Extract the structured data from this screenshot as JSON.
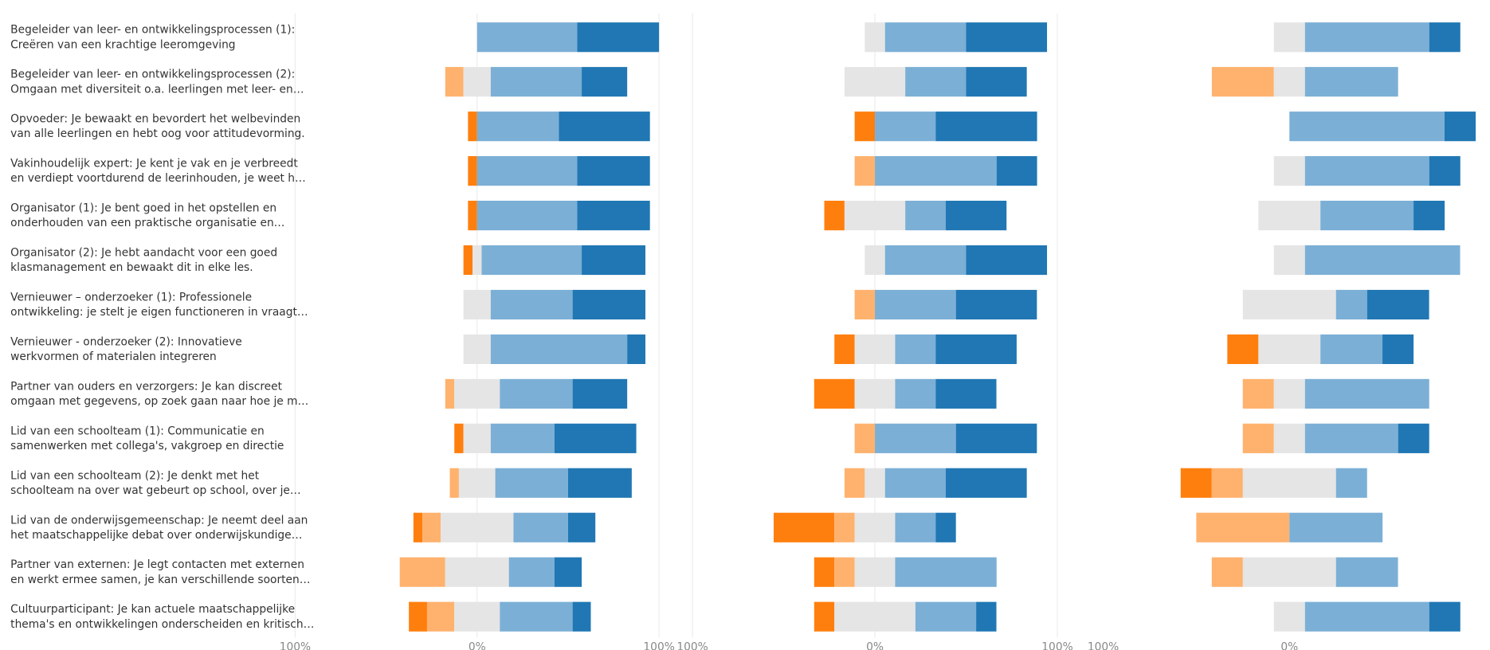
{
  "chart_data": [
    {
      "type": "bar",
      "orientation": "horizontal",
      "stacked": "diverging",
      "categories": [
        [
          "Begeleider van leer- en ontwikkelingsprocessen (1):",
          "Creëren van een krachtige leeromgeving"
        ],
        [
          "Begeleider van leer- en ontwikkelingsprocessen (2):",
          "Omgaan met diversiteit o.a. leerlingen met leer- en…"
        ],
        [
          "Opvoeder: Je bewaakt en bevordert het welbevinden",
          "van alle leerlingen en hebt oog voor attitudevorming."
        ],
        [
          "Vakinhoudelijk expert: Je kent je vak en je verbreedt",
          "en verdiept voortdurend de leerinhouden, je weet h…"
        ],
        [
          "Organisator (1): Je bent goed in het opstellen en",
          "onderhouden van een praktische organisatie en…"
        ],
        [
          "Organisator (2): Je hebt aandacht voor een goed",
          "klasmanagement en bewaakt dit in elke les."
        ],
        [
          "Vernieuwer – onderzoeker (1): Professionele",
          "ontwikkeling: je stelt je eigen functioneren in vraagt…"
        ],
        [
          "Vernieuwer - onderzoeker (2): Innovatieve",
          "werkvormen of materialen integreren"
        ],
        [
          "Partner van ouders en verzorgers: Je kan discreet",
          "omgaan met gegevens, op zoek gaan naar hoe je m…"
        ],
        [
          "Lid van een schoolteam (1): Communicatie en",
          "samenwerken met collega's, vakgroep en directie"
        ],
        [
          "Lid van een schoolteam (2): Je denkt met het",
          "schoolteam na over wat gebeurt op school, over je…"
        ],
        [
          "Lid van de onderwijsgemeenschap: Je neemt deel aan",
          "het maatschappelijke debat over onderwijskundige…"
        ],
        [
          "Partner van externen: Je legt contacten met externen",
          "en werkt ermee samen, je kan verschillende soorten…"
        ],
        [
          "Cultuurparticipant: Je kan actuele maatschappelijke",
          "thema's en ontwikkelingen onderscheiden en kritisch…"
        ]
      ],
      "series": [
        {
          "color": "#ff7f0e",
          "values": [
            0,
            0,
            5,
            5,
            5,
            5,
            0,
            0,
            0,
            5,
            0,
            5,
            0,
            10
          ]
        },
        {
          "color": "#ffb26e",
          "values": [
            0,
            10,
            0,
            0,
            0,
            0,
            0,
            0,
            5,
            0,
            5,
            10,
            25,
            15
          ]
        },
        {
          "color": "#e5e5e5",
          "values": [
            0,
            15,
            0,
            0,
            0,
            5,
            15,
            15,
            25,
            15,
            20,
            40,
            35,
            25
          ]
        },
        {
          "color": "#7bafd6",
          "values": [
            55,
            50,
            45,
            55,
            55,
            55,
            45,
            75,
            40,
            35,
            40,
            30,
            25,
            40
          ]
        },
        {
          "color": "#2077b4",
          "values": [
            45,
            25,
            50,
            40,
            40,
            35,
            40,
            10,
            30,
            45,
            35,
            15,
            15,
            10
          ]
        }
      ],
      "xlim": [
        -100,
        100
      ],
      "xticks": [
        {
          "value": -100,
          "label": "100%"
        },
        {
          "value": 0,
          "label": "0%"
        },
        {
          "value": 100,
          "label": "100%"
        }
      ],
      "grid": true
    },
    {
      "type": "bar",
      "orientation": "horizontal",
      "stacked": "diverging",
      "series": [
        {
          "color": "#ff7f0e",
          "values": [
            0,
            0,
            11.1,
            0,
            11.1,
            0,
            0,
            11.1,
            22.2,
            0,
            0,
            33.3,
            11.1,
            11.1
          ]
        },
        {
          "color": "#ffb26e",
          "values": [
            0,
            0,
            0,
            11.1,
            0,
            0,
            11.1,
            0,
            0,
            11.1,
            11.1,
            11.1,
            11.1,
            0
          ]
        },
        {
          "color": "#e5e5e5",
          "values": [
            11.1,
            33.3,
            0,
            0,
            33.3,
            11.1,
            0,
            22.2,
            22.2,
            0,
            11.1,
            22.2,
            22.2,
            44.4
          ]
        },
        {
          "color": "#7bafd6",
          "values": [
            44.4,
            33.3,
            33.3,
            66.7,
            22.2,
            44.4,
            44.4,
            22.2,
            22.2,
            44.4,
            33.3,
            22.2,
            55.6,
            33.3
          ]
        },
        {
          "color": "#2077b4",
          "values": [
            44.4,
            33.3,
            55.6,
            22.2,
            33.3,
            44.4,
            44.4,
            44.4,
            33.3,
            44.4,
            44.4,
            11.1,
            0,
            11.1
          ]
        }
      ],
      "xlim": [
        -100,
        100
      ],
      "xticks": [
        {
          "value": -100,
          "label": "100%"
        },
        {
          "value": 0,
          "label": "0%"
        },
        {
          "value": 100,
          "label": "100%"
        }
      ],
      "grid": true
    },
    {
      "type": "bar",
      "orientation": "horizontal",
      "stacked": "diverging",
      "series": [
        {
          "color": "#ff7f0e",
          "values": [
            0,
            0,
            0,
            0,
            0,
            0,
            0,
            16.7,
            0,
            0,
            16.7,
            0,
            0,
            0
          ]
        },
        {
          "color": "#ffb26e",
          "values": [
            0,
            33.3,
            0,
            0,
            0,
            0,
            0,
            0,
            16.7,
            16.7,
            16.7,
            50,
            16.7,
            0
          ]
        },
        {
          "color": "#e5e5e5",
          "values": [
            16.7,
            16.7,
            0,
            16.7,
            33.3,
            16.7,
            50,
            33.3,
            16.7,
            16.7,
            50,
            0,
            50,
            16.7
          ]
        },
        {
          "color": "#7bafd6",
          "values": [
            66.7,
            50,
            83.3,
            66.7,
            50,
            83.3,
            16.7,
            33.3,
            66.7,
            50,
            16.7,
            50,
            33.3,
            66.7
          ]
        },
        {
          "color": "#2077b4",
          "values": [
            16.7,
            0,
            16.7,
            16.7,
            16.7,
            0,
            33.3,
            16.7,
            0,
            16.7,
            0,
            0,
            0,
            16.7
          ]
        }
      ],
      "xlim": [
        -100,
        100
      ],
      "xticks": [
        {
          "value": -100,
          "label": "100%"
        },
        {
          "value": 0,
          "label": "0%"
        }
      ]
    }
  ]
}
